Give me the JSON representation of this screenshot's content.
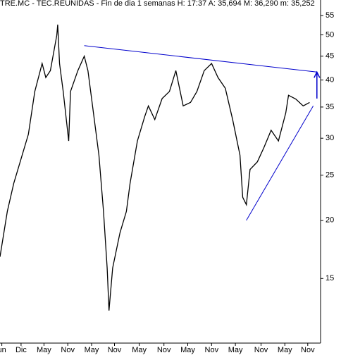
{
  "chart_data": {
    "type": "line",
    "title": "TRE.MC - TEC.REUNIDAS - Fin de dia 1 semanas  H: 17:37  A: 35,694  M: 36,290  m: 35,252",
    "log_scale": true,
    "xlim": [
      0,
      350
    ],
    "ylim": [
      10.9,
      59.4
    ],
    "yticks": [
      15,
      20,
      25,
      30,
      35,
      40,
      45,
      50,
      55
    ],
    "xticks": [
      {
        "value": 2,
        "label": "un"
      },
      {
        "value": 23,
        "label": "Dic"
      },
      {
        "value": 48,
        "label": "May"
      },
      {
        "value": 74,
        "label": "Nov"
      },
      {
        "value": 100,
        "label": "May"
      },
      {
        "value": 125,
        "label": "Nov"
      },
      {
        "value": 152,
        "label": "May"
      },
      {
        "value": 179,
        "label": "Nov"
      },
      {
        "value": 205,
        "label": "May"
      },
      {
        "value": 231,
        "label": "Nov"
      },
      {
        "value": 257,
        "label": "May"
      },
      {
        "value": 285,
        "label": "Nov"
      },
      {
        "value": 311,
        "label": "May"
      },
      {
        "value": 336,
        "label": "Nov"
      }
    ],
    "series": [
      {
        "color": "#000000",
        "x": [
          0,
          8,
          15,
          23,
          31,
          38,
          46,
          50,
          55,
          62,
          63,
          65,
          69,
          75,
          77,
          85,
          92,
          96,
          100,
          108,
          113,
          117,
          119,
          123,
          131,
          138,
          142,
          150,
          158,
          162,
          169,
          177,
          185,
          192,
          200,
          208,
          215,
          223,
          231,
          238,
          246,
          254,
          262,
          265,
          269,
          273,
          281,
          288,
          296,
          304,
          312,
          315,
          323,
          331,
          338
        ],
        "values": [
          16.7,
          20.9,
          24.0,
          27.1,
          30.6,
          37.8,
          43.4,
          40.5,
          41.9,
          49.9,
          52.6,
          43.4,
          37.8,
          29.6,
          37.8,
          41.9,
          45.0,
          41.9,
          36.5,
          27.6,
          20.9,
          15.8,
          12.8,
          15.8,
          18.8,
          20.9,
          24.0,
          29.6,
          33.4,
          35.2,
          32.9,
          36.5,
          37.8,
          41.9,
          35.2,
          35.8,
          37.8,
          41.9,
          43.4,
          40.5,
          38.4,
          32.9,
          27.6,
          22.4,
          21.6,
          25.7,
          26.7,
          28.6,
          31.2,
          29.6,
          34.0,
          37.1,
          36.4,
          35.2,
          35.8
        ]
      }
    ],
    "trendlines": [
      {
        "color": "#0000cc",
        "x": [
          92,
          346
        ],
        "values": [
          47.4,
          41.6
        ]
      },
      {
        "color": "#0000cc",
        "x": [
          269,
          342
        ],
        "values": [
          20.0,
          35.2
        ]
      }
    ],
    "arrow": {
      "color": "#0000cc",
      "x": 346,
      "from": 36.5,
      "to": 41.6
    }
  }
}
